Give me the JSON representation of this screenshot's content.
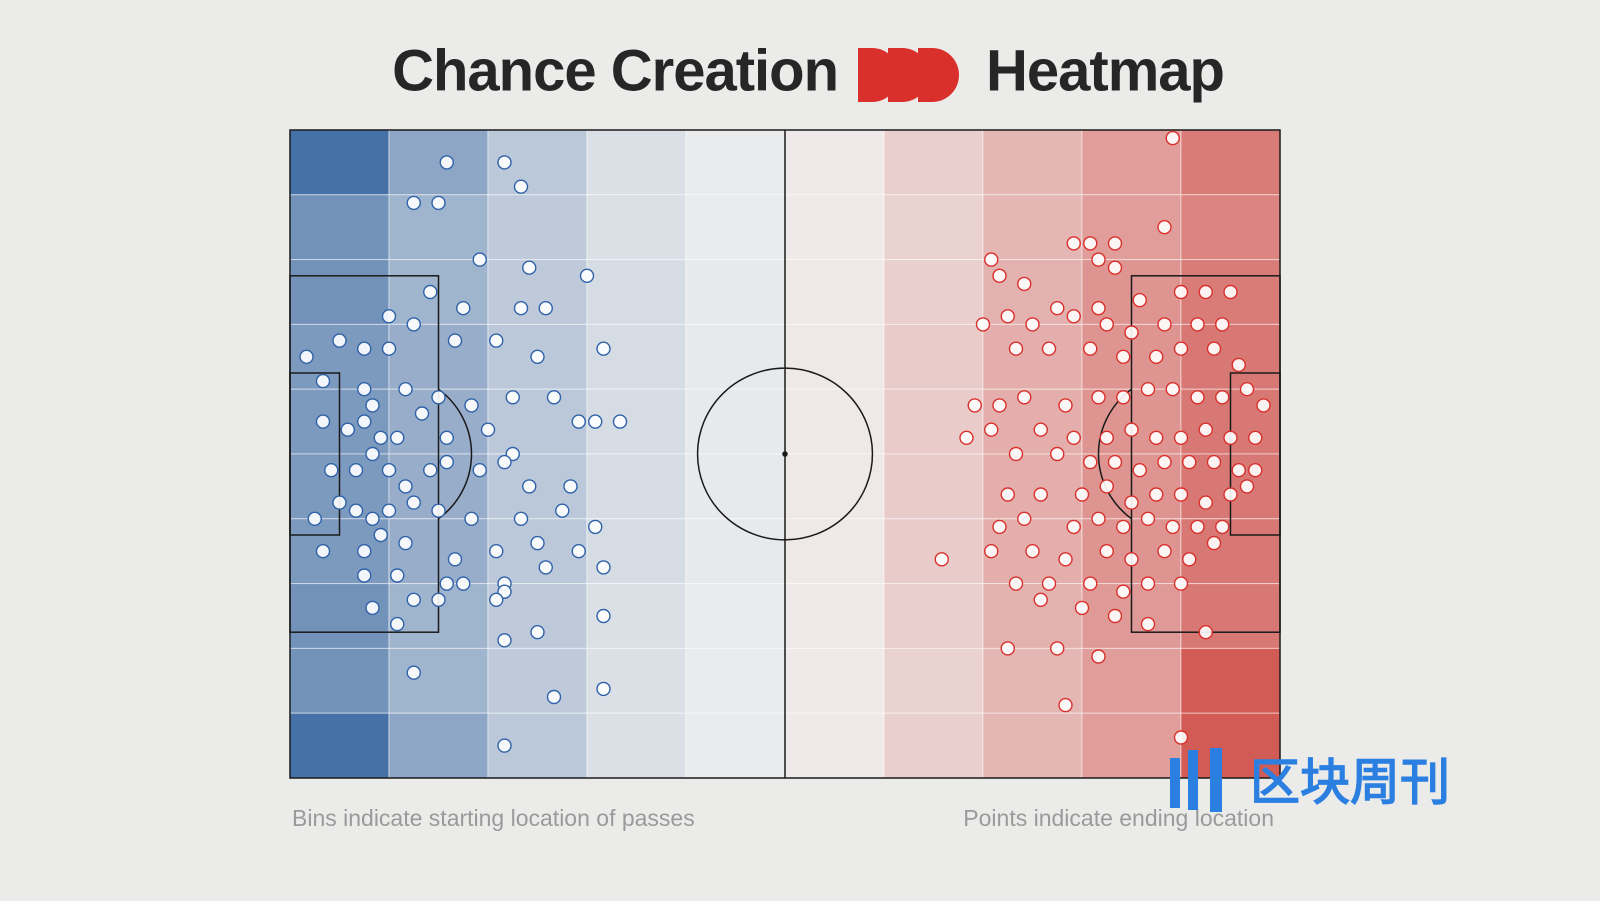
{
  "chart_data": {
    "type": "pitch-heatmap",
    "title": [
      "Chance Creation",
      "Heatmap"
    ],
    "notes": [
      "Bins indicate starting location of passes",
      "Points indicate ending location"
    ],
    "watermark": "区块周刊",
    "xlim": [
      0,
      120
    ],
    "ylim": [
      0,
      80
    ],
    "heatmap": {
      "x_bins": [
        0,
        12,
        24,
        36,
        48,
        60,
        72,
        84,
        96,
        108,
        120
      ],
      "y_bins": [
        0,
        8,
        16,
        24,
        32,
        40,
        48,
        56,
        64,
        72,
        80
      ],
      "cmap": [
        "#3d6aa3",
        "#f0f0f0",
        "#cf4a44"
      ],
      "values": [
        [
          -0.95,
          -0.55,
          -0.3,
          -0.12,
          -0.04,
          0.04,
          0.2,
          0.35,
          0.5,
          0.7
        ],
        [
          -0.7,
          -0.45,
          -0.28,
          -0.12,
          -0.04,
          0.04,
          0.18,
          0.35,
          0.5,
          0.65
        ],
        [
          -0.7,
          -0.45,
          -0.28,
          -0.15,
          -0.05,
          0.05,
          0.2,
          0.38,
          0.55,
          0.7
        ],
        [
          -0.65,
          -0.5,
          -0.3,
          -0.15,
          -0.05,
          0.05,
          0.22,
          0.4,
          0.55,
          0.72
        ],
        [
          -0.65,
          -0.5,
          -0.3,
          -0.15,
          -0.05,
          0.05,
          0.22,
          0.4,
          0.55,
          0.72
        ],
        [
          -0.65,
          -0.5,
          -0.3,
          -0.15,
          -0.05,
          0.05,
          0.22,
          0.4,
          0.55,
          0.72
        ],
        [
          -0.65,
          -0.5,
          -0.3,
          -0.15,
          -0.05,
          0.05,
          0.22,
          0.4,
          0.55,
          0.72
        ],
        [
          -0.7,
          -0.45,
          -0.28,
          -0.12,
          -0.04,
          0.04,
          0.2,
          0.38,
          0.52,
          0.72
        ],
        [
          -0.7,
          -0.45,
          -0.28,
          -0.12,
          -0.04,
          0.04,
          0.18,
          0.35,
          0.5,
          0.9
        ],
        [
          -0.95,
          -0.55,
          -0.3,
          -0.12,
          -0.04,
          0.04,
          0.2,
          0.35,
          0.5,
          0.9
        ]
      ]
    },
    "series": [
      {
        "color": "#2f62a8",
        "x": [
          19,
          26,
          28,
          15,
          18,
          23,
          29,
          36,
          17,
          12,
          15,
          21,
          28,
          31,
          6,
          9,
          12,
          20,
          25,
          30,
          38,
          2,
          4,
          9,
          10,
          14,
          18,
          22,
          27,
          32,
          35,
          4,
          7,
          9,
          11,
          13,
          16,
          19,
          24,
          27,
          37,
          40,
          5,
          8,
          10,
          12,
          14,
          17,
          19,
          23,
          26,
          29,
          34,
          3,
          6,
          8,
          10,
          12,
          15,
          18,
          22,
          28,
          33,
          37,
          4,
          9,
          11,
          14,
          20,
          25,
          30,
          35,
          21,
          26,
          31,
          38,
          9,
          13,
          15,
          19,
          26,
          10,
          18,
          25,
          38,
          13,
          26,
          30,
          15,
          32,
          38,
          26
        ],
        "y": [
          4,
          4,
          7,
          9,
          9,
          16,
          17,
          18,
          20,
          23,
          24,
          22,
          22,
          22,
          26,
          27,
          27,
          26,
          26,
          28,
          27,
          28,
          31,
          32,
          34,
          32,
          33,
          34,
          33,
          33,
          36,
          36,
          37,
          36,
          38,
          38,
          35,
          38,
          37,
          40,
          36,
          36,
          42,
          42,
          40,
          42,
          44,
          42,
          41,
          42,
          41,
          44,
          44,
          48,
          46,
          47,
          48,
          47,
          46,
          47,
          48,
          48,
          47,
          49,
          52,
          52,
          50,
          51,
          53,
          52,
          51,
          52,
          56,
          56,
          54,
          54,
          55,
          55,
          58,
          56,
          57,
          59,
          58,
          58,
          60,
          61,
          63,
          62,
          67,
          70,
          69,
          76
        ]
      },
      {
        "color": "#d9302c",
        "x": [
          107,
          106,
          97,
          100,
          95,
          85,
          100,
          98,
          114,
          86,
          89,
          93,
          98,
          103,
          108,
          111,
          84,
          87,
          90,
          95,
          99,
          102,
          106,
          110,
          113,
          88,
          92,
          97,
          101,
          105,
          108,
          112,
          115,
          83,
          86,
          89,
          94,
          98,
          101,
          104,
          107,
          110,
          113,
          116,
          118,
          82,
          85,
          91,
          95,
          99,
          102,
          105,
          108,
          111,
          114,
          117,
          88,
          93,
          97,
          100,
          103,
          106,
          109,
          112,
          115,
          117,
          87,
          91,
          96,
          99,
          102,
          105,
          108,
          111,
          114,
          116,
          86,
          89,
          95,
          98,
          101,
          104,
          107,
          110,
          113,
          79,
          85,
          90,
          94,
          99,
          102,
          106,
          109,
          112,
          88,
          92,
          97,
          101,
          104,
          108,
          91,
          96,
          100,
          104,
          111,
          87,
          93,
          98,
          94,
          108
        ],
        "y": [
          1,
          12,
          14,
          14,
          14,
          16,
          17,
          16,
          20,
          18,
          19,
          22,
          22,
          21,
          20,
          20,
          24,
          23,
          24,
          23,
          24,
          25,
          24,
          24,
          24,
          27,
          27,
          27,
          28,
          28,
          27,
          27,
          29,
          34,
          34,
          33,
          34,
          33,
          33,
          32,
          32,
          33,
          33,
          32,
          34,
          38,
          37,
          37,
          38,
          38,
          37,
          38,
          38,
          37,
          38,
          38,
          40,
          40,
          41,
          41,
          42,
          41,
          41,
          41,
          42,
          42,
          45,
          45,
          45,
          44,
          46,
          45,
          45,
          46,
          45,
          44,
          49,
          48,
          49,
          48,
          49,
          48,
          49,
          49,
          49,
          53,
          52,
          52,
          53,
          52,
          53,
          52,
          53,
          51,
          56,
          56,
          56,
          57,
          56,
          56,
          58,
          59,
          60,
          61,
          62,
          64,
          64,
          65,
          71,
          75
        ]
      }
    ]
  }
}
